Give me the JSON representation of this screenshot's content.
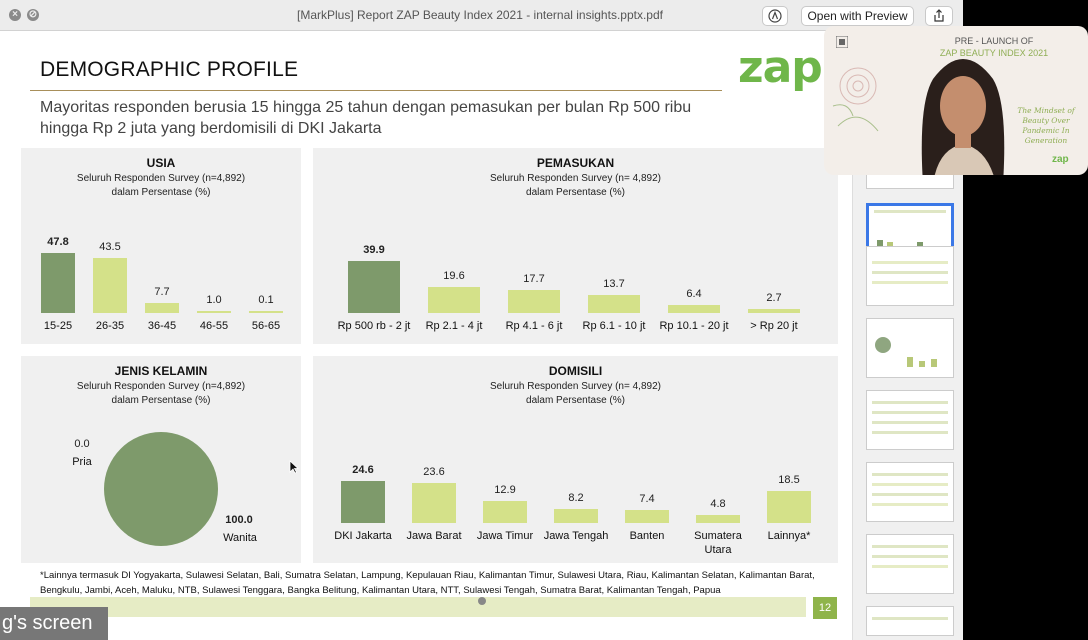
{
  "window": {
    "title": "[MarkPlus] Report ZAP Beauty Index 2021 - internal insights.pptx.pdf",
    "markup_icon": "markup-pen-icon",
    "open_with_label": "Open with Preview",
    "share_icon": "share-icon"
  },
  "slide": {
    "title": "DEMOGRAPHIC PROFILE",
    "logo": "zap",
    "subtitle": "Mayoritas responden berusia 15 hingga 25 tahun dengan pemasukan per bulan Rp 500 ribu hingga Rp 2 juta yang berdomisili di DKI Jakarta",
    "footnote": "*Lainnya termasuk DI Yogyakarta, Sulawesi Selatan, Bali, Sumatra Selatan, Lampung, Kepulauan Riau, Kalimantan Timur, Sulawesi Utara, Riau, Kalimantan Selatan, Kalimantan Barat, Bengkulu, Jambi, Aceh, Maluku, NTB, Sulawesi Tenggara, Bangka Belitung, Kalimantan Utara, NTT, Sulawesi Tengah, Sumatra Barat, Kalimantan Tengah, Papua",
    "page_number": "12"
  },
  "colors": {
    "dark_bar": "#7e9a6b",
    "light_bar": "#d4e189",
    "accent": "#6fb64a"
  },
  "chart_data": [
    {
      "type": "bar",
      "title": "USIA",
      "subtitle": "Seluruh Responden Survey (n=4,892)",
      "unit": "dalam Persentase (%)",
      "categories": [
        "15-25",
        "26-35",
        "36-45",
        "46-55",
        "56-65"
      ],
      "values": [
        47.8,
        43.5,
        7.7,
        1.0,
        0.1
      ],
      "value_labels": [
        "47.8",
        "43.5",
        "7.7",
        "1.0",
        "0.1"
      ],
      "highlight_index": 0
    },
    {
      "type": "bar",
      "title": "PEMASUKAN",
      "subtitle": "Seluruh Responden Survey (n= 4,892)",
      "unit": "dalam Persentase (%)",
      "categories": [
        "Rp 500 rb - 2 jt",
        "Rp 2.1 - 4 jt",
        "Rp 4.1 - 6 jt",
        "Rp 6.1 - 10 jt",
        "Rp 10.1 - 20 jt",
        "> Rp 20 jt"
      ],
      "values": [
        39.9,
        19.6,
        17.7,
        13.7,
        6.4,
        2.7
      ],
      "value_labels": [
        "39.9",
        "19.6",
        "17.7",
        "13.7",
        "6.4",
        "2.7"
      ],
      "highlight_index": 0
    },
    {
      "type": "pie",
      "title": "JENIS KELAMIN",
      "subtitle": "Seluruh Responden Survey (n=4,892)",
      "unit": "dalam Persentase (%)",
      "categories": [
        "Pria",
        "Wanita"
      ],
      "values": [
        0.0,
        100.0
      ],
      "value_labels": [
        "0.0",
        "100.0"
      ]
    },
    {
      "type": "bar",
      "title": "DOMISILI",
      "subtitle": "Seluruh Responden Survey (n= 4,892)",
      "unit": "dalam Persentase (%)",
      "categories": [
        "DKI Jakarta",
        "Jawa Barat",
        "Jawa Timur",
        "Jawa Tengah",
        "Banten",
        "Sumatera Utara",
        "Lainnya*"
      ],
      "values": [
        24.6,
        23.6,
        12.9,
        8.2,
        7.4,
        4.8,
        18.5
      ],
      "value_labels": [
        "24.6",
        "23.6",
        "12.9",
        "8.2",
        "7.4",
        "4.8",
        "18.5"
      ],
      "highlight_index": 0
    }
  ],
  "video": {
    "header_line1": "PRE - LAUNCH OF",
    "header_line2": "ZAP BEAUTY INDEX 2021",
    "script_text": "The Mindset of Beauty Over Pandemic In Generation",
    "logo": "zap"
  },
  "screen_share_label": "g's screen"
}
